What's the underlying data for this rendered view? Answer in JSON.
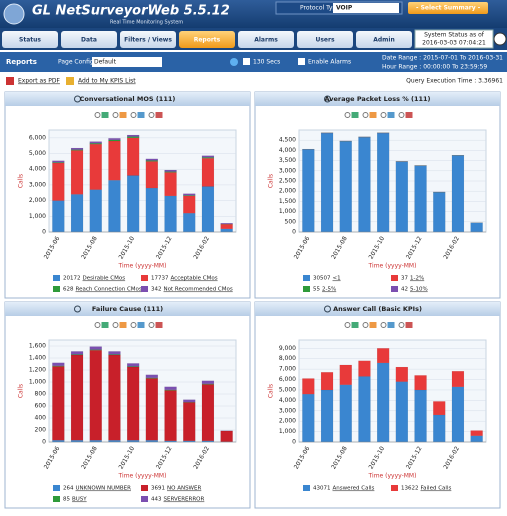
{
  "header": {
    "title": "GL NetSurveyorWeb 5.5.12",
    "subtitle": "Real Time Monitoring System",
    "protocol_label": "Protocol Type",
    "protocol_value": "VOIP",
    "summary": "- Select Summary -"
  },
  "tabs": [
    "Status",
    "Data",
    "Filters / Views",
    "Reports",
    "Alarms",
    "Users",
    "Admin"
  ],
  "status": {
    "label": "System Status as of",
    "time": "2016-03-03 07:04:21"
  },
  "toolbar": {
    "section": "Reports",
    "page_config_label": "Page Config",
    "page_config_value": "Default",
    "refresh": "130 Secs",
    "alarms": "Enable Alarms",
    "date_range": "Date Range : 2015-07-01 To 2016-03-31",
    "hour_range": "Hour Range : 00:00:00 To 23:59:59"
  },
  "links": {
    "export": "Export as PDF",
    "add_kpi": "Add to My KPIS List",
    "query_time": "Query Execution Time : 3.36961"
  },
  "chart_data": [
    {
      "type": "bar",
      "title": "Conversational MOS (111)",
      "ylabel": "Calls",
      "xlabel": "Time (yyyy-MM)",
      "categories": [
        "2015-06",
        null,
        "2015-08",
        null,
        "2015-10",
        null,
        "2015-12",
        null,
        "2016-02",
        null
      ],
      "ylim": [
        0,
        6500
      ],
      "yticks": [
        0,
        {
          "value": 1000,
          "label": "1,000"
        },
        {
          "value": 2000,
          "label": "2,000"
        },
        {
          "value": 3000,
          "label": "3,000"
        },
        {
          "value": 4000,
          "label": "4,000"
        },
        {
          "value": 5000,
          "label": "5,000"
        },
        {
          "value": 6000,
          "label": "6,000"
        }
      ],
      "series": [
        {
          "name": "Desirable CMos",
          "count": 20172,
          "color": "#3a86d0",
          "values": [
            2000,
            2400,
            2700,
            3300,
            3600,
            2800,
            2300,
            1200,
            2900,
            200
          ]
        },
        {
          "name": "Acceptable CMos",
          "count": 17737,
          "color": "#e83a3a",
          "values": [
            2400,
            2800,
            2900,
            2500,
            2400,
            1700,
            1500,
            1100,
            1800,
            300
          ]
        },
        {
          "name": "Reach Connection CMos",
          "count": 628,
          "color": "#2e9a3a",
          "values": [
            40,
            50,
            60,
            70,
            80,
            60,
            50,
            40,
            60,
            10
          ]
        },
        {
          "name": "Not Recommended CMos",
          "count": 342,
          "color": "#7b4fb0",
          "values": [
            100,
            100,
            100,
            100,
            100,
            100,
            100,
            100,
            100,
            50
          ]
        }
      ]
    },
    {
      "type": "bar",
      "title": "Average Packet Loss % (111)",
      "ylabel": "Calls",
      "xlabel": "Time (yyyy-MM)",
      "categories": [
        "2015-06",
        null,
        "2015-08",
        null,
        "2015-10",
        null,
        "2015-12",
        null,
        "2016-02",
        null
      ],
      "ylim": [
        0,
        5000
      ],
      "yticks": [
        0,
        500,
        {
          "value": 1000,
          "label": "1,000"
        },
        {
          "value": 1500,
          "label": "1,500"
        },
        {
          "value": 2000,
          "label": "2,000"
        },
        {
          "value": 2500,
          "label": "2,500"
        },
        {
          "value": 3000,
          "label": "3,000"
        },
        {
          "value": 3500,
          "label": "3,500"
        },
        {
          "value": 4000,
          "label": "4,000"
        },
        {
          "value": 4500,
          "label": "4,500"
        }
      ],
      "series": [
        {
          "name": "<1",
          "count": 30507,
          "color": "#3a86d0",
          "values": [
            4050,
            4850,
            4450,
            4650,
            4850,
            3450,
            3250,
            1950,
            3750,
            450
          ]
        },
        {
          "name": "1-2%",
          "count": 37,
          "color": "#e83a3a",
          "values": [
            4,
            4,
            4,
            4,
            4,
            4,
            4,
            4,
            4,
            1
          ]
        },
        {
          "name": "2-5%",
          "count": 55,
          "color": "#2e9a3a",
          "values": [
            6,
            6,
            6,
            6,
            6,
            6,
            6,
            6,
            6,
            1
          ]
        },
        {
          "name": "5-10%",
          "count": 42,
          "color": "#7b4fb0",
          "values": [
            5,
            5,
            5,
            5,
            5,
            5,
            5,
            4,
            2,
            1
          ]
        }
      ]
    },
    {
      "type": "bar",
      "title": "Failure Cause (111)",
      "ylabel": "Calls",
      "xlabel": "Time (yyyy-MM)",
      "categories": [
        "2015-06",
        null,
        "2015-08",
        null,
        "2015-10",
        null,
        "2015-12",
        null,
        "2016-02",
        null
      ],
      "ylim": [
        0,
        1700
      ],
      "yticks": [
        0,
        200,
        400,
        600,
        800,
        {
          "value": 1000,
          "label": "1,000"
        },
        {
          "value": 1200,
          "label": "1,200"
        },
        {
          "value": 1400,
          "label": "1,400"
        },
        {
          "value": 1600,
          "label": "1,600"
        }
      ],
      "series": [
        {
          "name": "UNKNOWN NUMBER",
          "count": 264,
          "color": "#3a86d0",
          "values": [
            30,
            30,
            30,
            30,
            30,
            30,
            20,
            20,
            20,
            4
          ]
        },
        {
          "name": "NO ANSWER",
          "count": 3691,
          "color": "#c8202a",
          "values": [
            1230,
            1420,
            1500,
            1420,
            1220,
            1030,
            840,
            640,
            940,
            180
          ]
        },
        {
          "name": "BUSY",
          "count": 85,
          "color": "#2e9a3a",
          "values": [
            10,
            10,
            10,
            10,
            10,
            10,
            10,
            5,
            10,
            0
          ]
        },
        {
          "name": "SERVERERROR",
          "count": 443,
          "color": "#7b4fb0",
          "values": [
            50,
            50,
            50,
            50,
            50,
            50,
            50,
            40,
            50,
            3
          ]
        }
      ]
    },
    {
      "type": "bar",
      "title": "Answer Call (Basic KPIs)",
      "ylabel": "Calls",
      "xlabel": "Time (yyyy-MM)",
      "categories": [
        "2015-06",
        null,
        "2015-08",
        null,
        "2015-10",
        null,
        "2015-12",
        null,
        "2016-02",
        null
      ],
      "ylim": [
        0,
        9800
      ],
      "yticks": [
        0,
        {
          "value": 1000,
          "label": "1,000"
        },
        {
          "value": 2000,
          "label": "2,000"
        },
        {
          "value": 3000,
          "label": "3,000"
        },
        {
          "value": 4000,
          "label": "4,000"
        },
        {
          "value": 5000,
          "label": "5,000"
        },
        {
          "value": 6000,
          "label": "6,000"
        },
        {
          "value": 7000,
          "label": "7,000"
        },
        {
          "value": 8000,
          "label": "8,000"
        },
        {
          "value": 9000,
          "label": "9,000"
        }
      ],
      "series": [
        {
          "name": "Answered Calls",
          "count": 43071,
          "color": "#3a86d0",
          "values": [
            4600,
            5000,
            5500,
            6300,
            7600,
            5800,
            5000,
            2600,
            5300,
            600
          ]
        },
        {
          "name": "Failed Calls",
          "count": 13622,
          "color": "#e83a3a",
          "values": [
            1500,
            1700,
            1900,
            1500,
            1400,
            1400,
            1400,
            1300,
            1500,
            500
          ]
        }
      ]
    }
  ]
}
